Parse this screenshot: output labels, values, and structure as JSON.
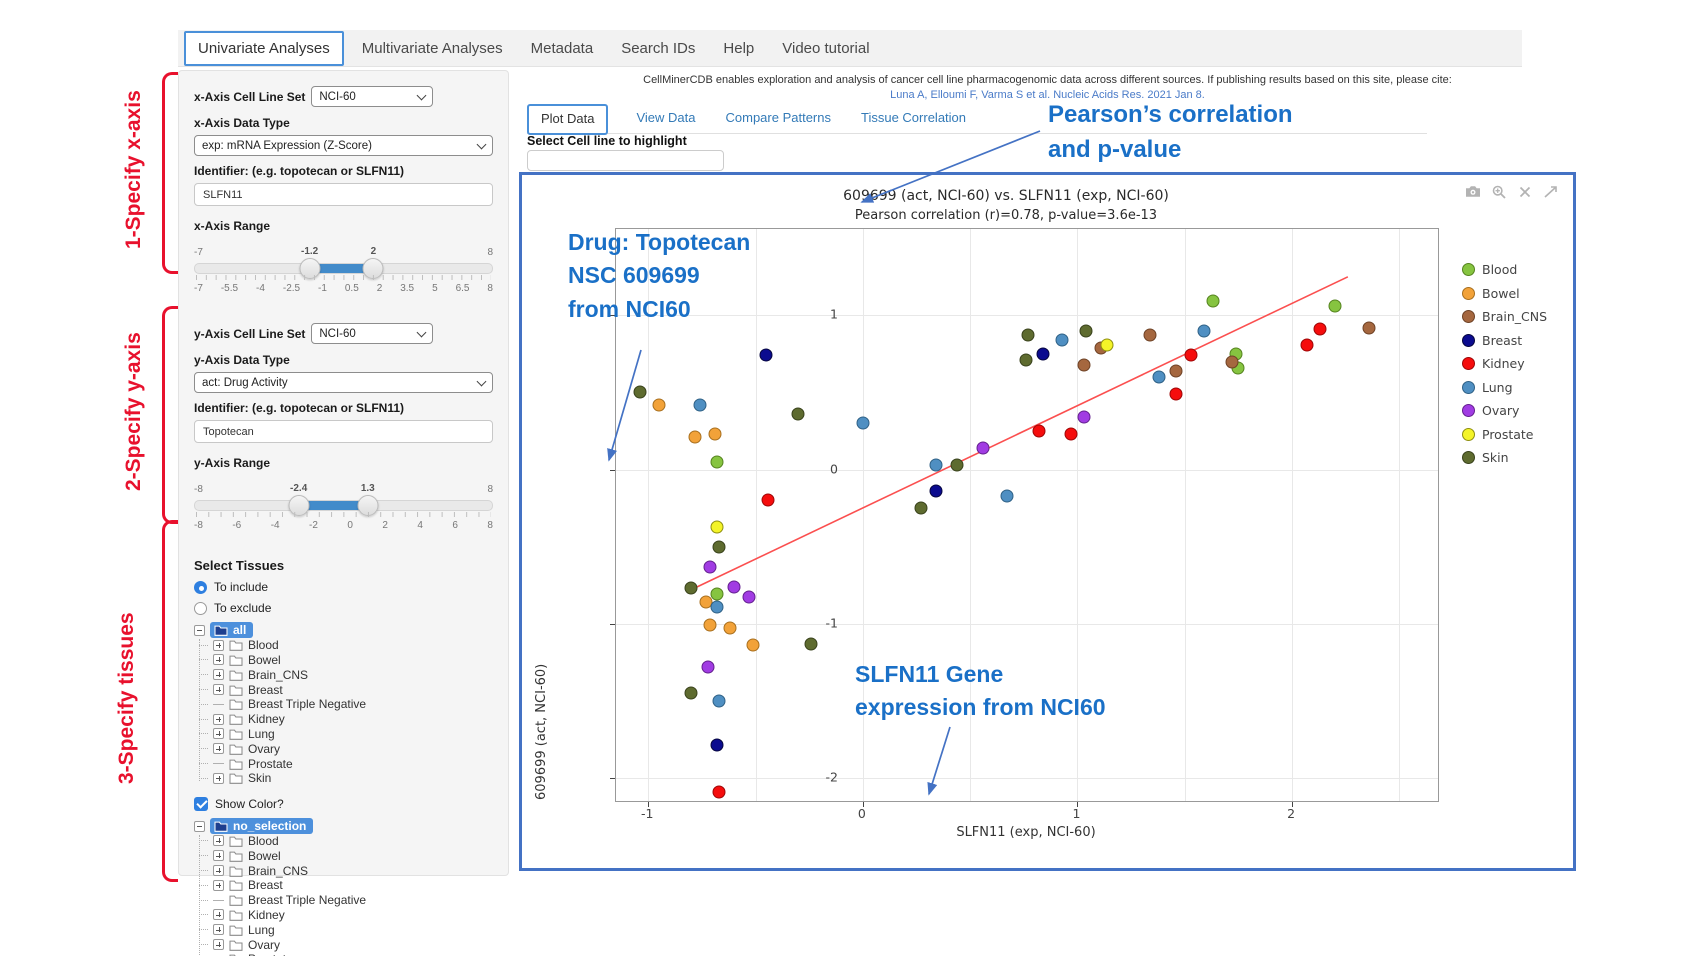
{
  "nav": {
    "tabs": [
      {
        "label": "Univariate Analyses",
        "active": true
      },
      {
        "label": "Multivariate Analyses",
        "active": false
      },
      {
        "label": "Metadata",
        "active": false
      },
      {
        "label": "Search IDs",
        "active": false
      },
      {
        "label": "Help",
        "active": false
      },
      {
        "label": "Video tutorial",
        "active": false
      }
    ]
  },
  "sidebar": {
    "x_axis": {
      "cell_line_set_label": "x-Axis Cell Line Set",
      "cell_line_set_value": "NCI-60",
      "data_type_label": "x-Axis Data Type",
      "data_type_value": "exp: mRNA Expression (Z-Score)",
      "identifier_label": "Identifier: (e.g. topotecan or SLFN11)",
      "identifier_value": "SLFN11",
      "range": {
        "label": "x-Axis Range",
        "min": -7,
        "max": 8,
        "low": -1.2,
        "high": 2,
        "min_label": "-7",
        "max_label": "8",
        "low_label": "-1.2",
        "high_label": "2",
        "ticks": [
          "-7",
          "-5.5",
          "-4",
          "-2.5",
          "-1",
          "0.5",
          "2",
          "3.5",
          "5",
          "6.5",
          "8"
        ]
      }
    },
    "y_axis": {
      "cell_line_set_label": "y-Axis Cell Line Set",
      "cell_line_set_value": "NCI-60",
      "data_type_label": "y-Axis Data Type",
      "data_type_value": "act: Drug Activity",
      "identifier_label": "Identifier: (e.g. topotecan or SLFN11)",
      "identifier_value": "Topotecan",
      "range": {
        "label": "y-Axis Range",
        "min": -8,
        "max": 8,
        "low": -2.4,
        "high": 1.3,
        "min_label": "-8",
        "max_label": "8",
        "low_label": "-2.4",
        "high_label": "1.3",
        "ticks": [
          "-8",
          "-6",
          "-4",
          "-2",
          "0",
          "2",
          "4",
          "6",
          "8"
        ]
      }
    },
    "select_tissues": {
      "label": "Select Tissues",
      "include_label": "To include",
      "exclude_label": "To exclude",
      "include_selected": true
    },
    "show_color_label": "Show Color?",
    "show_color_checked": true,
    "tissue_tree": {
      "root": "all"
    },
    "selection_tree": {
      "root": "no_selection"
    },
    "tree_items": [
      "Blood",
      "Bowel",
      "Brain_CNS",
      "Breast",
      "Breast Triple Negative",
      "Kidney",
      "Lung",
      "Ovary",
      "Prostate",
      "Skin"
    ],
    "tree_leaf_items": [
      "Breast Triple Negative",
      "Prostate"
    ]
  },
  "main": {
    "citation_line1": "CellMinerCDB enables exploration and analysis of cancer cell line pharmacogenomic data across different sources. If publishing results based on this site, please cite:",
    "citation_line2": "Luna A, Elloumi F, Varma S et al. Nucleic Acids Res. 2021 Jan 8.",
    "tabs": [
      {
        "label": "Plot Data",
        "active": true
      },
      {
        "label": "View Data",
        "active": false
      },
      {
        "label": "Compare Patterns",
        "active": false
      },
      {
        "label": "Tissue Correlation",
        "active": false
      }
    ],
    "highlight_label": "Select Cell line to highlight",
    "highlight_value": "",
    "modebar_icons": [
      "camera",
      "zoom-in",
      "close",
      "expand"
    ]
  },
  "annotations": {
    "red_color": "#e8112d",
    "blue_color": "#1a70c7",
    "steps": [
      "1-Specify x-axis",
      "2-Specify y-axis",
      "3-Specify tissues"
    ],
    "pearson_note_line1": "Pearson’s correlation",
    "pearson_note_line2": "and p-value",
    "drug_note_line1": "Drug: Topotecan",
    "drug_note_line2": "NSC 609699",
    "drug_note_line3": "from NCI60",
    "gene_note_line1": "SLFN11 Gene",
    "gene_note_line2": "expression from NCI60"
  },
  "chart_data": {
    "type": "scatter",
    "title": "609699 (act, NCI-60) vs. SLFN11 (exp, NCI-60)",
    "subtitle": "Pearson correlation (r)=0.78, p-value=3.6e-13",
    "pearson_r": 0.78,
    "p_value": "3.6e-13",
    "xlabel": "SLFN11 (exp, NCI-60)",
    "ylabel": "609699 (act, NCI-60)",
    "xlim": [
      -1.15,
      2.68
    ],
    "ylim": [
      -2.15,
      1.56
    ],
    "x_ticks": [
      -1,
      0,
      1,
      2
    ],
    "y_ticks": [
      1,
      0,
      -1,
      -2
    ],
    "x_gridlines": [
      -1,
      -0.5,
      0,
      0.5,
      1,
      1.5,
      2,
      2.5
    ],
    "y_gridlines": [
      1,
      0,
      -1,
      -2
    ],
    "grid": true,
    "legend_position": "right",
    "regression_line": {
      "color": "#fb4f4f",
      "x1": -0.8,
      "y1": -0.78,
      "x2": 2.26,
      "y2": 1.25
    },
    "series": [
      {
        "name": "Blood",
        "color": "#86c440",
        "border": "#55831f",
        "points": [
          [
            -0.68,
            0.05
          ],
          [
            -0.68,
            -0.81
          ],
          [
            1.63,
            1.09
          ],
          [
            2.2,
            1.06
          ],
          [
            1.74,
            0.75
          ],
          [
            1.75,
            0.66
          ]
        ]
      },
      {
        "name": "Bowel",
        "color": "#f2a239",
        "border": "#a86f1e",
        "points": [
          [
            -0.95,
            0.42
          ],
          [
            -0.78,
            0.21
          ],
          [
            -0.69,
            0.23
          ],
          [
            -0.73,
            -0.86
          ],
          [
            -0.71,
            -1.01
          ],
          [
            -0.62,
            -1.03
          ],
          [
            -0.51,
            -1.14
          ]
        ]
      },
      {
        "name": "Brain_CNS",
        "color": "#a5673f",
        "border": "#6e4226",
        "points": [
          [
            1.34,
            0.87
          ],
          [
            1.11,
            0.79
          ],
          [
            1.03,
            0.68
          ],
          [
            1.46,
            0.64
          ],
          [
            1.72,
            0.7
          ],
          [
            2.36,
            0.92
          ]
        ]
      },
      {
        "name": "Breast",
        "color": "#0b0b8f",
        "border": "#06063f",
        "points": [
          [
            -0.45,
            0.74
          ],
          [
            0.34,
            -0.14
          ],
          [
            -0.68,
            -1.79
          ],
          [
            0.84,
            0.75
          ]
        ]
      },
      {
        "name": "Kidney",
        "color": "#f50d0d",
        "border": "#9e0606",
        "points": [
          [
            -0.44,
            -0.2
          ],
          [
            -0.67,
            -2.09
          ],
          [
            0.82,
            0.25
          ],
          [
            0.97,
            0.23
          ],
          [
            1.46,
            0.49
          ],
          [
            1.53,
            0.74
          ],
          [
            2.07,
            0.81
          ],
          [
            2.13,
            0.91
          ]
        ]
      },
      {
        "name": "Lung",
        "color": "#4f8fc2",
        "border": "#2f6186",
        "points": [
          [
            -0.76,
            0.42
          ],
          [
            0.0,
            0.3
          ],
          [
            0.34,
            0.03
          ],
          [
            0.67,
            -0.17
          ],
          [
            -0.68,
            -0.89
          ],
          [
            -0.67,
            -1.5
          ],
          [
            0.93,
            0.84
          ],
          [
            1.38,
            0.6
          ],
          [
            1.59,
            0.9
          ]
        ]
      },
      {
        "name": "Ovary",
        "color": "#a13ce3",
        "border": "#64208f",
        "points": [
          [
            -0.71,
            -0.63
          ],
          [
            -0.6,
            -0.76
          ],
          [
            -0.53,
            -0.83
          ],
          [
            -0.72,
            -1.28
          ],
          [
            0.56,
            0.14
          ],
          [
            1.03,
            0.34
          ]
        ]
      },
      {
        "name": "Prostate",
        "color": "#f4f428",
        "border": "#8f8f10",
        "points": [
          [
            -0.68,
            -0.37
          ],
          [
            1.14,
            0.81
          ]
        ]
      },
      {
        "name": "Skin",
        "color": "#5e6b2f",
        "border": "#39421c",
        "points": [
          [
            -1.04,
            0.5
          ],
          [
            -0.3,
            0.36
          ],
          [
            0.44,
            0.03
          ],
          [
            0.27,
            -0.25
          ],
          [
            -0.67,
            -0.5
          ],
          [
            -0.8,
            -0.77
          ],
          [
            -0.24,
            -1.13
          ],
          [
            -0.8,
            -1.45
          ],
          [
            0.77,
            0.87
          ],
          [
            1.04,
            0.9
          ],
          [
            0.76,
            0.71
          ]
        ]
      }
    ]
  }
}
